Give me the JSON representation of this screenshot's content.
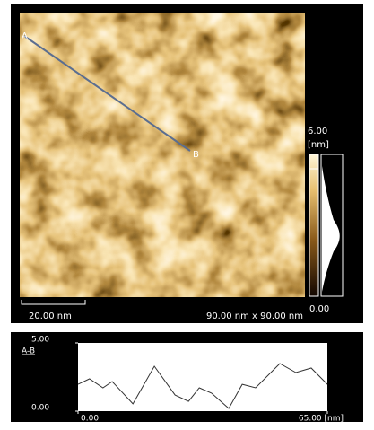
{
  "image": {
    "label_a": "A",
    "label_b": "B",
    "scale_bar": "20.00 nm",
    "size": "90.00 nm x 90.00 nm",
    "colorbar": {
      "max": "6.00",
      "unit": "[nm]",
      "min": "0.00"
    }
  },
  "profile": {
    "title": "A-B",
    "xlim": [
      0,
      65
    ],
    "ylim": [
      0,
      5
    ],
    "xticks": [
      {
        "value": 0,
        "label": "0.00"
      },
      {
        "value": 65,
        "label": "65.00 [nm]"
      }
    ],
    "yticks": [
      {
        "value": 0,
        "label": "0.00"
      },
      {
        "value": 5,
        "label": "5.00"
      }
    ],
    "x": [
      0,
      3.0,
      6.5,
      8.9,
      14.3,
      19.9,
      25.3,
      28.8,
      31.6,
      34.8,
      39.3,
      42.8,
      46.3,
      52.6,
      56.8,
      60.8,
      65.0
    ],
    "y": [
      1.97,
      2.37,
      1.71,
      2.17,
      0.53,
      3.29,
      1.18,
      0.72,
      1.71,
      1.32,
      0.2,
      1.97,
      1.71,
      3.49,
      2.83,
      3.16,
      1.97
    ]
  }
}
